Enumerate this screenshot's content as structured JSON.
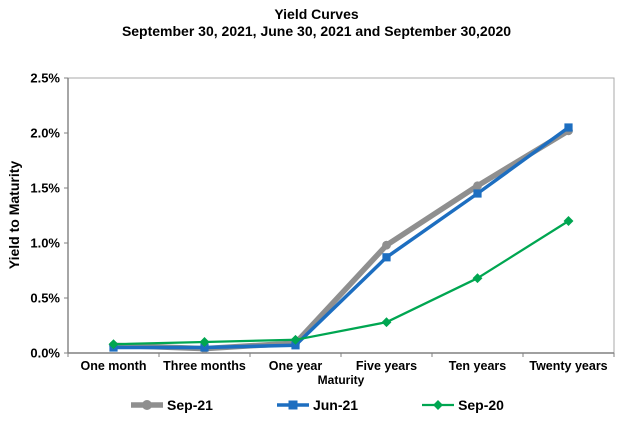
{
  "chart_data": {
    "type": "line",
    "title": "Yield Curves",
    "subtitle": "September 30, 2021, June 30, 2021 and September 30,2020",
    "categories": [
      "One month",
      "Three months",
      "One year",
      "Five years",
      "Ten years",
      "Twenty years"
    ],
    "series": [
      {
        "name": "Sep-21",
        "color": "#8f8f8f",
        "marker": "circle",
        "line_width": 5.5,
        "values": [
          0.07,
          0.04,
          0.09,
          0.98,
          1.52,
          2.02
        ]
      },
      {
        "name": "Jun-21",
        "color": "#1d6ec0",
        "marker": "square",
        "line_width": 3.5,
        "values": [
          0.05,
          0.05,
          0.07,
          0.87,
          1.45,
          2.05
        ]
      },
      {
        "name": "Sep-20",
        "color": "#00a651",
        "marker": "diamond",
        "line_width": 2.25,
        "values": [
          0.08,
          0.1,
          0.12,
          0.28,
          0.68,
          1.2
        ]
      }
    ],
    "xlabel": "Maturity",
    "ylabel": "Yield to Maturity",
    "ylim": [
      0,
      2.5
    ],
    "y_ticks": [
      "0.0%",
      "0.5%",
      "1.0%",
      "1.5%",
      "2.0%",
      "2.5%"
    ],
    "y_tick_values": [
      0,
      0.5,
      1.0,
      1.5,
      2.0,
      2.5
    ],
    "grid": false,
    "legend_position": "bottom",
    "axis_color": "#808080",
    "plot_border_color": "#a9a9a9",
    "text_color": "#000000"
  }
}
